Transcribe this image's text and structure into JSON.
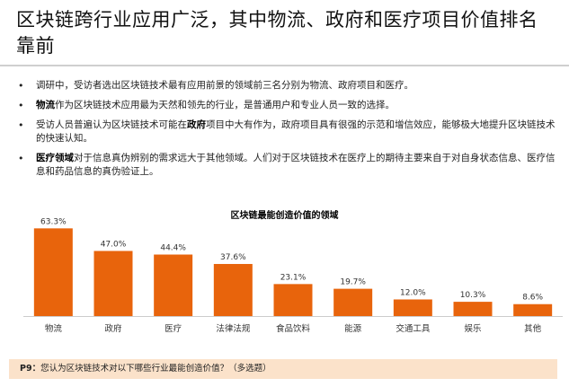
{
  "slide": {
    "title": "区块链跨行业应用广泛，其中物流、政府和医疗项目价值排名靠前",
    "bullets": [
      {
        "bold": "",
        "text": "调研中，受访者选出区块链技术最有应用前景的领域前三名分别为物流、政府项目和医疗。"
      },
      {
        "bold": "物流",
        "text": "作为区块链技术应用最为天然和领先的行业，是普通用户和专业人员一致的选择。"
      },
      {
        "prefix": "受访人员普遍认为区块链技术可能在",
        "bold": "政府",
        "text": "项目中大有作为，政府项目具有很强的示范和增信效应，能够极大地提升区块链技术的快速认知。"
      },
      {
        "bold": "医疗领域",
        "text": "对于信息真伪辨别的需求远大于其他领域。人们对于区块链技术在医疗上的期待主要来自于对自身状态信息、医疗信息和药品信息的真伪验证上。"
      }
    ],
    "footer_label": "P9：",
    "footer_text": "您认为区块链技术对以下哪些行业最能创造价值？（多选题）"
  },
  "chart_data": {
    "type": "bar",
    "title": "区块链最能创造价值的领域",
    "categories": [
      "物流",
      "政府",
      "医疗",
      "法律法规",
      "食品饮料",
      "能源",
      "交通工具",
      "娱乐",
      "其他"
    ],
    "values": [
      63.3,
      47.0,
      44.4,
      37.6,
      23.1,
      19.7,
      12.0,
      10.3,
      8.6
    ],
    "value_labels": [
      "63.3%",
      "47.0%",
      "44.4%",
      "37.6%",
      "23.1%",
      "19.7%",
      "12.0%",
      "10.3%",
      "8.6%"
    ],
    "ylim": [
      0,
      70
    ],
    "grid": false,
    "bar_color": "#e8640c"
  }
}
